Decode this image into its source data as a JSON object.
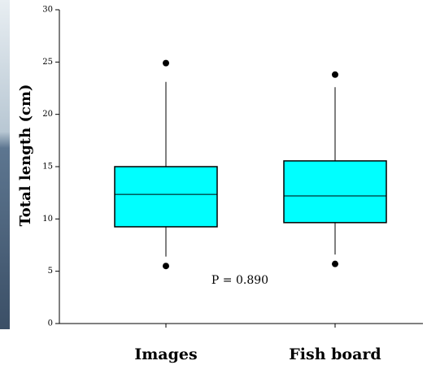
{
  "chart_data": {
    "type": "box",
    "y_label": "Total length (cm)",
    "categories": [
      "Images",
      "Fish board"
    ],
    "color": "#00ffff",
    "boxes": [
      {
        "whisker_low": 6.4,
        "q1": 9.25,
        "median": 12.35,
        "q3": 15.0,
        "whisker_high": 23.1,
        "outliers": [
          5.5,
          24.9
        ]
      },
      {
        "whisker_low": 6.6,
        "q1": 9.65,
        "median": 12.2,
        "q3": 15.55,
        "whisker_high": 22.6,
        "outliers": [
          5.7,
          23.8
        ]
      }
    ],
    "ylim": [
      0,
      30
    ],
    "yticks": [
      0,
      5,
      10,
      15,
      20,
      25,
      30
    ],
    "annotation": "P = 0.890"
  }
}
